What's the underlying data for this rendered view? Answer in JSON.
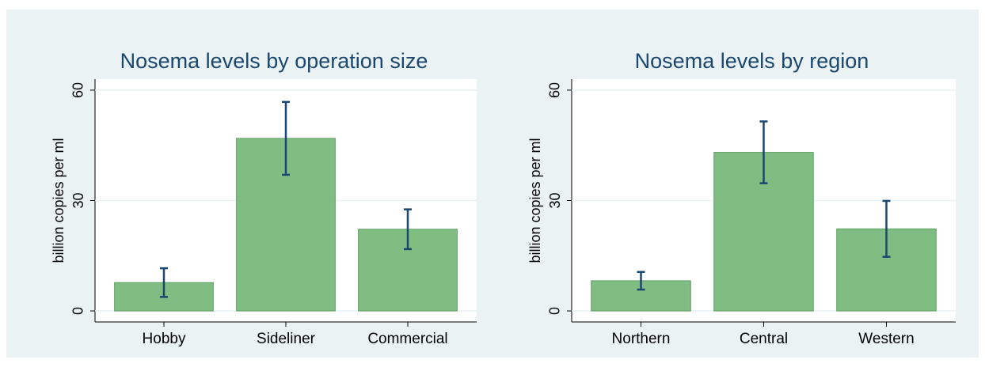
{
  "chart_data": [
    {
      "type": "bar",
      "title": "Nosema levels by operation size",
      "y_label": "billion copies per ml",
      "categories": [
        "Hobby",
        "Sideliner",
        "Commercial"
      ],
      "values": [
        7.7,
        46.9,
        22.2
      ],
      "errors": [
        3.9,
        9.9,
        5.4
      ],
      "color": "#80bd83",
      "error_color": "#1a476f",
      "ylim": [
        -3,
        63
      ],
      "yticks": [
        0,
        30,
        60
      ],
      "grid": true
    },
    {
      "type": "bar",
      "title": "Nosema levels by region",
      "y_label": "billion copies per ml",
      "categories": [
        "Northern",
        "Central",
        "Western"
      ],
      "values": [
        8.2,
        43.1,
        22.3
      ],
      "errors": [
        2.4,
        8.4,
        7.6
      ],
      "color": "#80bd83",
      "error_color": "#1a476f",
      "ylim": [
        -3,
        63
      ],
      "yticks": [
        0,
        30,
        60
      ],
      "grid": true
    }
  ]
}
